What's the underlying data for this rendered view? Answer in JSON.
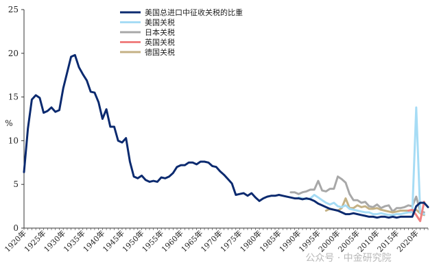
{
  "watermark": "公众号 · 中金研究院",
  "chart_data": {
    "type": "line",
    "ylabel": "%",
    "xlabel": "",
    "ylim": [
      0,
      25
    ],
    "yticks": [
      0,
      5,
      10,
      15,
      20,
      25
    ],
    "xlim": [
      1920,
      2023
    ],
    "xticks": [
      {
        "value": 1920,
        "label": "1920年"
      },
      {
        "value": 1925,
        "label": "1925年"
      },
      {
        "value": 1930,
        "label": "1930年"
      },
      {
        "value": 1935,
        "label": "1935年"
      },
      {
        "value": 1940,
        "label": "1940年"
      },
      {
        "value": 1945,
        "label": "1945年"
      },
      {
        "value": 1950,
        "label": "1950年"
      },
      {
        "value": 1955,
        "label": "1955年"
      },
      {
        "value": 1960,
        "label": "1960年"
      },
      {
        "value": 1965,
        "label": "1965年"
      },
      {
        "value": 1970,
        "label": "1970年"
      },
      {
        "value": 1975,
        "label": "1975年"
      },
      {
        "value": 1980,
        "label": "1980年"
      },
      {
        "value": 1985,
        "label": "1985年"
      },
      {
        "value": 1990,
        "label": "1990年"
      },
      {
        "value": 1995,
        "label": "1995年"
      },
      {
        "value": 2000,
        "label": "2000年"
      },
      {
        "value": 2005,
        "label": "2005年"
      },
      {
        "value": 2010,
        "label": "2010年"
      },
      {
        "value": 2015,
        "label": "2015年"
      },
      {
        "value": 2020,
        "label": "2020年"
      }
    ],
    "legend": "top-left",
    "grid": false,
    "series": [
      {
        "name": "美国总进口中征收关税的比重",
        "color": "#0b2a6f",
        "width": 3,
        "x": [
          1920,
          1921,
          1922,
          1923,
          1924,
          1925,
          1926,
          1927,
          1928,
          1929,
          1930,
          1931,
          1932,
          1933,
          1934,
          1935,
          1936,
          1937,
          1938,
          1939,
          1940,
          1941,
          1942,
          1943,
          1944,
          1945,
          1946,
          1947,
          1948,
          1949,
          1950,
          1951,
          1952,
          1953,
          1954,
          1955,
          1956,
          1957,
          1958,
          1959,
          1960,
          1961,
          1962,
          1963,
          1964,
          1965,
          1966,
          1967,
          1968,
          1969,
          1970,
          1971,
          1972,
          1973,
          1974,
          1975,
          1976,
          1977,
          1978,
          1979,
          1980,
          1981,
          1982,
          1983,
          1984,
          1985,
          1986,
          1987,
          1988,
          1989,
          1990,
          1991,
          1992,
          1993,
          1994,
          1995,
          1996,
          1997,
          1998,
          1999,
          2000,
          2001,
          2002,
          2003,
          2004,
          2005,
          2006,
          2007,
          2008,
          2009,
          2010,
          2011,
          2012,
          2013,
          2014,
          2015,
          2016,
          2017,
          2018,
          2019,
          2020,
          2021,
          2022,
          2023
        ],
        "values": [
          6.4,
          11.4,
          14.7,
          15.2,
          14.9,
          13.2,
          13.4,
          13.8,
          13.3,
          13.5,
          16.0,
          17.8,
          19.6,
          19.8,
          18.4,
          17.6,
          16.9,
          15.6,
          15.5,
          14.4,
          12.5,
          13.6,
          11.6,
          11.6,
          10.0,
          9.8,
          10.3,
          7.6,
          5.9,
          5.7,
          6.0,
          5.5,
          5.3,
          5.4,
          5.3,
          5.8,
          5.7,
          5.9,
          6.3,
          7.0,
          7.2,
          7.2,
          7.5,
          7.5,
          7.3,
          7.6,
          7.6,
          7.5,
          7.1,
          7.0,
          6.5,
          6.1,
          5.6,
          5.1,
          3.8,
          3.9,
          4.0,
          3.7,
          4.0,
          3.5,
          3.1,
          3.4,
          3.6,
          3.7,
          3.7,
          3.8,
          3.7,
          3.6,
          3.5,
          3.4,
          3.4,
          3.3,
          3.4,
          3.3,
          3.1,
          2.8,
          2.6,
          2.4,
          2.2,
          2.1,
          2.0,
          1.8,
          1.6,
          1.6,
          1.7,
          1.6,
          1.5,
          1.4,
          1.3,
          1.3,
          1.2,
          1.3,
          1.3,
          1.2,
          1.3,
          1.2,
          1.3,
          1.3,
          1.3,
          1.3,
          2.5,
          2.9,
          2.9,
          2.4
        ]
      },
      {
        "name": "美国关税",
        "color": "#a6dcf5",
        "width": 3,
        "x": [
          1990,
          1991,
          1992,
          1993,
          1994,
          1995,
          1996,
          1997,
          1998,
          1999,
          2000,
          2001,
          2002,
          2003,
          2004,
          2005,
          2006,
          2007,
          2008,
          2009,
          2010,
          2011,
          2012,
          2013,
          2014,
          2015,
          2016,
          2017,
          2018,
          2019,
          2020,
          2021,
          2022
        ],
        "values": [
          3.5,
          3.4,
          3.3,
          3.4,
          3.8,
          3.5,
          3.2,
          2.9,
          2.7,
          2.9,
          2.5,
          2.4,
          2.6,
          2.2,
          2.1,
          2.0,
          1.9,
          1.8,
          1.8,
          1.6,
          1.6,
          1.7,
          1.6,
          1.5,
          1.5,
          1.6,
          1.6,
          1.7,
          1.8,
          1.8,
          13.8,
          1.8,
          1.6
        ]
      },
      {
        "name": "日本关税",
        "color": "#a8a8a8",
        "width": 3,
        "x": [
          1988,
          1989,
          1990,
          1991,
          1992,
          1993,
          1994,
          1995,
          1996,
          1997,
          1998,
          1999,
          2000,
          2001,
          2002,
          2003,
          2004,
          2005,
          2006,
          2007,
          2008,
          2009,
          2010,
          2011,
          2012,
          2013,
          2014,
          2015,
          2016,
          2017,
          2018,
          2019,
          2020,
          2021,
          2022
        ],
        "values": [
          4.1,
          4.1,
          3.9,
          4.1,
          4.2,
          4.4,
          4.4,
          5.4,
          4.3,
          4.2,
          4.5,
          4.5,
          5.9,
          5.6,
          5.2,
          3.9,
          3.2,
          3.2,
          2.9,
          3.0,
          2.5,
          2.4,
          2.7,
          2.3,
          2.5,
          2.6,
          1.9,
          2.3,
          2.3,
          2.4,
          2.6,
          2.5,
          3.6,
          1.9,
          1.8
        ]
      },
      {
        "name": "英国关税",
        "color": "#f08080",
        "width": 3,
        "x": [
          2018,
          2019,
          2020,
          2021,
          2022
        ],
        "values": [
          2.0,
          2.1,
          1.5,
          0.8,
          3.0
        ]
      },
      {
        "name": "德国关税",
        "color": "#c4b184",
        "width": 3,
        "x": [
          1997,
          1998,
          1999,
          2000,
          2001,
          2002,
          2003,
          2004,
          2005,
          2006,
          2007,
          2008,
          2009,
          2010,
          2011,
          2012,
          2013,
          2014,
          2015,
          2016,
          2017,
          2018,
          2019,
          2020,
          2021,
          2022
        ],
        "values": [
          2.0,
          2.2,
          2.1,
          2.0,
          2.3,
          3.4,
          2.3,
          2.3,
          2.6,
          2.4,
          2.5,
          2.2,
          2.2,
          2.3,
          2.1,
          2.0,
          1.9,
          1.8,
          1.9,
          2.0,
          2.0,
          2.0,
          2.0,
          2.1,
          1.7,
          1.5
        ]
      }
    ]
  }
}
